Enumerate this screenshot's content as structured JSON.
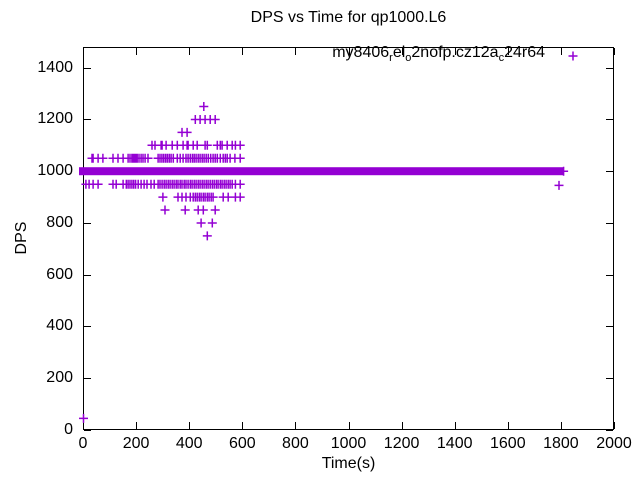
{
  "window": {
    "background": "#ffffff"
  },
  "title": "DPS vs Time for qp1000.L6",
  "legend": {
    "position": "top-right-inside",
    "marker": "plus",
    "series_name": "my8406_rel_o2nofp.cz12a_c24r64",
    "label_segments": [
      {
        "text": "my8406",
        "subscript": false
      },
      {
        "text": "r",
        "subscript": true
      },
      {
        "text": "el",
        "subscript": false
      },
      {
        "text": "o",
        "subscript": true
      },
      {
        "text": "2nofp.cz12a",
        "subscript": false
      },
      {
        "text": "c",
        "subscript": true
      },
      {
        "text": "24r64",
        "subscript": false
      }
    ]
  },
  "colors": {
    "marker": "#9400d3",
    "axis": "#000000",
    "text": "#000000",
    "background": "#ffffff"
  },
  "chart_data": {
    "type": "scatter",
    "title": "DPS vs Time for qp1000.L6",
    "xlabel": "Time(s)",
    "ylabel": "DPS",
    "xlim": [
      0,
      2000
    ],
    "ylim": [
      0,
      1480
    ],
    "xticks": [
      0,
      200,
      400,
      600,
      800,
      1000,
      1200,
      1400,
      1600,
      1800,
      2000
    ],
    "yticks": [
      0,
      200,
      400,
      600,
      800,
      1000,
      1200,
      1400
    ],
    "grid": false,
    "ticks_mirrored": true,
    "marker": "plus",
    "marker_color": "#9400d3",
    "series_name": "my8406_rel_o2nofp.cz12a_c24r64",
    "baseline_band": {
      "dps": 1000,
      "t_start": 0,
      "t_end": 1810,
      "note": "continuous dense band of overlapping points"
    },
    "points_by_level": {
      "1250": [
        455
      ],
      "1200": [
        423,
        441,
        460,
        479,
        498
      ],
      "1150": [
        373,
        392
      ],
      "1100": [
        260,
        271,
        294,
        298,
        313,
        336,
        355,
        377,
        392,
        396,
        415,
        430,
        460,
        468,
        506,
        517,
        524,
        543,
        562,
        574,
        592
      ],
      "1050": [
        34,
        38,
        57,
        75,
        113,
        132,
        151,
        170,
        177,
        184,
        189,
        194,
        199,
        204,
        211,
        219,
        226,
        234,
        245,
        283,
        290,
        297,
        304,
        311,
        318,
        325,
        332,
        340,
        355,
        366,
        377,
        388,
        396,
        404,
        412,
        419,
        426,
        434,
        441,
        449,
        456,
        464,
        472,
        481,
        490,
        498,
        506,
        517,
        528,
        536,
        543,
        554,
        572,
        592
      ],
      "950": [
        11,
        23,
        38,
        57,
        113,
        125,
        151,
        163,
        170,
        177,
        184,
        191,
        198,
        208,
        219,
        230,
        241,
        256,
        268,
        283,
        290,
        298,
        306,
        313,
        321,
        328,
        336,
        343,
        351,
        358,
        366,
        373,
        381,
        388,
        396,
        404,
        411,
        419,
        426,
        434,
        441,
        449,
        456,
        464,
        471,
        479,
        487,
        494,
        502,
        509,
        517,
        524,
        532,
        539,
        547,
        554,
        562,
        574,
        592
      ],
      "900": [
        301,
        358,
        373,
        388,
        404,
        415,
        423,
        430,
        438,
        445,
        453,
        460,
        468,
        475,
        483,
        490,
        528,
        547,
        574,
        592
      ],
      "850": [
        309,
        385,
        434,
        453,
        498
      ],
      "800": [
        445,
        487
      ],
      "750": [
        468
      ]
    },
    "extra_points": [
      [
        2,
        45
      ],
      [
        1793,
        945
      ],
      [
        1810,
        1000
      ]
    ]
  }
}
